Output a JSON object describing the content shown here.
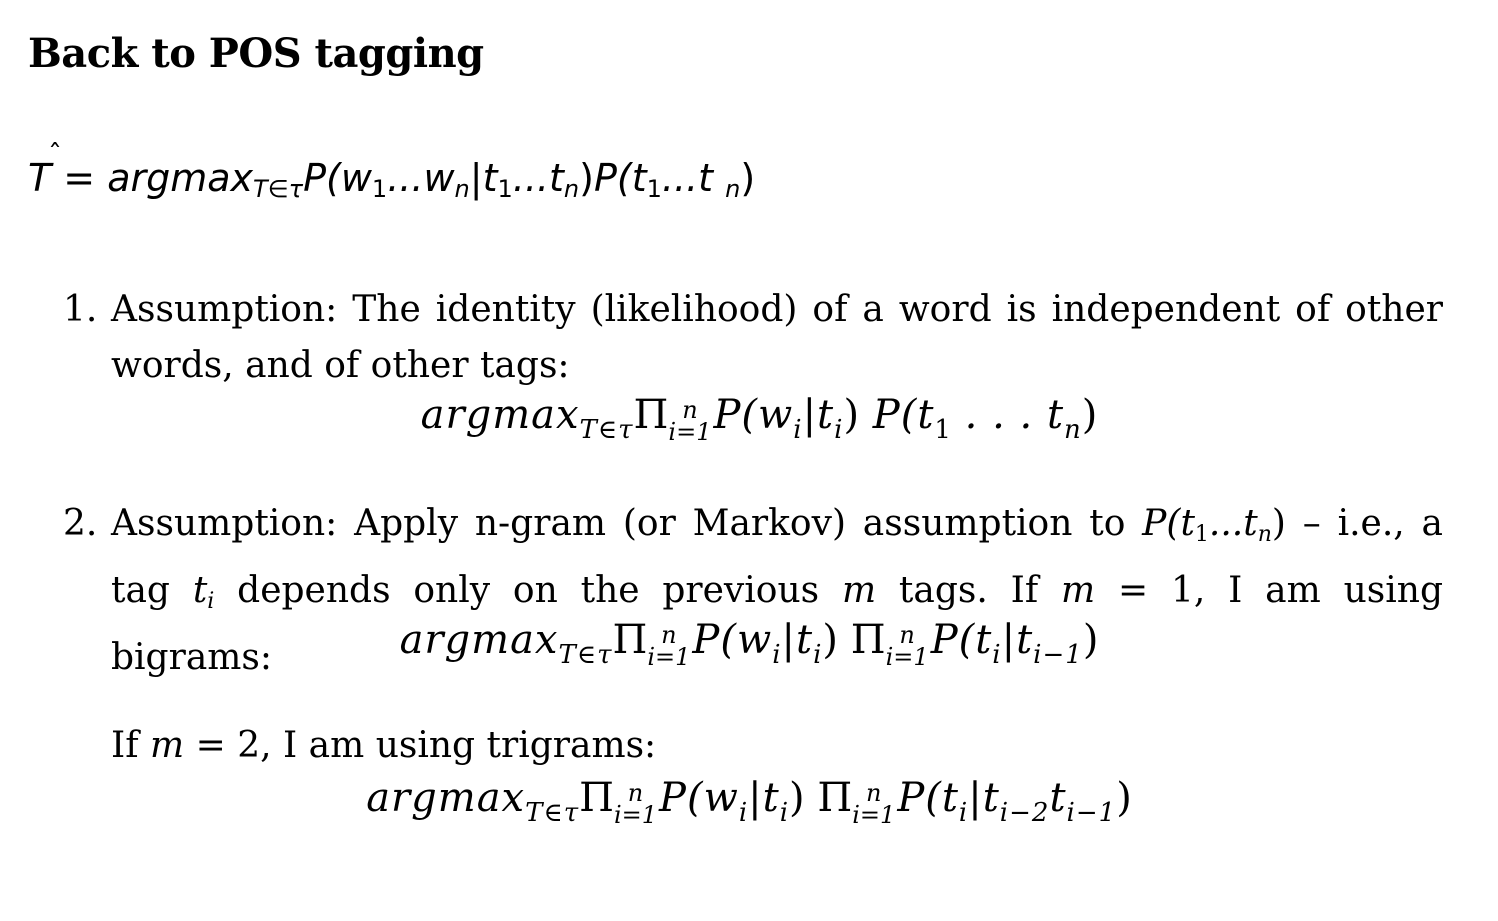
{
  "title": "Back to POS tagging",
  "main_equation": {
    "lhs": "T",
    "hat": "ˆ",
    "equals": " = ",
    "argmax": "argmax",
    "argmax_sub": "T∈τ",
    "p1_open": "P(",
    "w": "w",
    "sub_1a": "1",
    "dots1": "...",
    "w2": "w",
    "sub_n1": "n",
    "bar": "|",
    "t1": "t",
    "sub_1b": "1",
    "dots2": "...",
    "t2": "t",
    "sub_n2": "n",
    "p1_close": ")",
    "p2_open": "P(",
    "t3": "t",
    "sub_1c": "1",
    "dots3": "...",
    "t4": "t ",
    "sub_n3": "n",
    "p2_close": ")"
  },
  "items": [
    {
      "number": "1.",
      "text": "Assumption: The identity (likelihood) of a word is independent of other words, and of other tags:"
    },
    {
      "number": "2.",
      "text_before": "Assumption: Apply n-gram (or Markov) assumption to ",
      "p_expr": "P(",
      "t_a": "t",
      "sub_a": "1",
      "dots": "...",
      "t_b": "t",
      "sub_b": "n",
      "close": ")",
      "text_mid": " – i.e., a tag ",
      "t_i": "t",
      "sub_i": "i",
      "text_mid2": " depends only on the previous ",
      "m1": "m",
      "text_mid3": " tags. If ",
      "m2": "m",
      "text_end": " = 1, I am using bigrams:"
    }
  ],
  "formula1": {
    "argmax": "argmax",
    "sub": "T∈τ",
    "pi": "Π",
    "sup": "n",
    "low": "i=1",
    "rest": "P(w",
    "wi": "i",
    "mid": "|t",
    "ti": "i",
    "close": ")",
    "p2": " P(t",
    "p2sub": "1",
    "dots": " . . . t",
    "p2sub2": "n",
    "p2close": ")"
  },
  "formula2": {
    "argmax": "argmax",
    "sub": "T∈τ",
    "pi": "Π",
    "sup": "n",
    "low": "i=1",
    "rest": "P(w",
    "wi": "i",
    "mid": "|t",
    "ti": "i",
    "close": ")",
    "pi2": " Π",
    "sup2": "n",
    "low2": "i=1",
    "p2": "P(t",
    "p2sub": "i",
    "bar": "|t",
    "p2sub2": "i−1",
    "p2close": ")"
  },
  "trigram_intro": {
    "prefix": "If ",
    "m": "m",
    "suffix": " = 2, I am using trigrams:"
  },
  "formula3": {
    "argmax": "argmax",
    "sub": "T∈τ",
    "pi": "Π",
    "sup": "n",
    "low": "i=1",
    "rest": "P(w",
    "wi": "i",
    "mid": "|t",
    "ti": "i",
    "close": ")",
    "pi2": " Π",
    "sup2": "n",
    "low2": "i=1",
    "p2": "P(t",
    "p2sub": "i",
    "bar": "|t",
    "p2sub2": "i−2",
    "t3": "t",
    "p2sub3": "i−1",
    "p2close": ")"
  }
}
